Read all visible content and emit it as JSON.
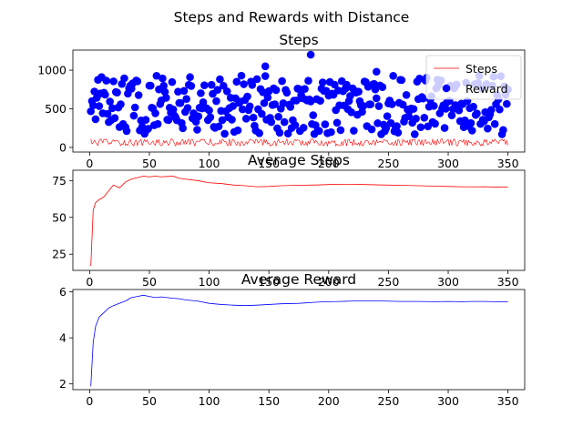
{
  "figure": {
    "suptitle": "Steps and Rewards with Distance"
  },
  "chart_data": [
    {
      "type": "line+scatter",
      "title": "Steps",
      "xlim": [
        -14,
        364
      ],
      "ylim": [
        -60,
        1260
      ],
      "xticks": [
        0,
        50,
        100,
        150,
        200,
        250,
        300,
        350
      ],
      "yticks": [
        0,
        500,
        1000
      ],
      "legend": {
        "placement": "top-right",
        "entries": [
          "Steps",
          "Reward"
        ]
      },
      "series": [
        {
          "name": "Steps",
          "kind": "line",
          "color": "#ff0000",
          "x_range": [
            1,
            350
          ],
          "description": "per-episode steps, fluctuating roughly 20-110"
        },
        {
          "name": "Reward",
          "kind": "scatter",
          "color": "#0000ff",
          "x_range": [
            1,
            350
          ],
          "description": "per-episode reward, scattered roughly 150-1200",
          "max_point": [
            185,
            1200
          ],
          "notable_points": [
            [
              147,
              1050
            ],
            [
              240,
              980
            ]
          ]
        }
      ]
    },
    {
      "type": "line",
      "title": "Average Steps",
      "xlim": [
        -14,
        364
      ],
      "ylim": [
        14,
        82
      ],
      "xticks": [
        0,
        50,
        100,
        150,
        200,
        250,
        300,
        350
      ],
      "yticks": [
        25,
        50,
        75
      ],
      "series": [
        {
          "color": "#ff0000",
          "x": [
            1,
            3,
            5,
            8,
            12,
            16,
            20,
            25,
            30,
            35,
            40,
            45,
            50,
            55,
            60,
            65,
            70,
            75,
            80,
            90,
            100,
            110,
            120,
            130,
            140,
            150,
            160,
            175,
            190,
            200,
            210,
            220,
            230,
            245,
            260,
            275,
            290,
            300,
            310,
            320,
            330,
            340,
            350
          ],
          "y": [
            17,
            55,
            60,
            62,
            64,
            68,
            72,
            70,
            74,
            76,
            77,
            78,
            77.5,
            78,
            77.5,
            77.8,
            78,
            76.5,
            76,
            75,
            73.5,
            73,
            72,
            71.5,
            70.8,
            71,
            71.5,
            71.8,
            72,
            72.3,
            72.5,
            72.5,
            72.3,
            72,
            71.8,
            71.5,
            71.2,
            71,
            70.8,
            70.7,
            70.8,
            70.6,
            70.5
          ]
        }
      ]
    },
    {
      "type": "line",
      "title": "Average Reward",
      "xlim": [
        -14,
        364
      ],
      "ylim": [
        1.75,
        6.1
      ],
      "xticks": [
        0,
        50,
        100,
        150,
        200,
        250,
        300,
        350
      ],
      "yticks": [
        2,
        4,
        6
      ],
      "series": [
        {
          "color": "#0000ff",
          "x": [
            1,
            3,
            5,
            8,
            12,
            16,
            20,
            25,
            30,
            35,
            40,
            45,
            50,
            55,
            60,
            65,
            70,
            75,
            80,
            90,
            100,
            110,
            120,
            130,
            140,
            150,
            160,
            175,
            190,
            200,
            210,
            220,
            230,
            245,
            260,
            275,
            290,
            300,
            310,
            320,
            330,
            340,
            350
          ],
          "y": [
            1.9,
            3.8,
            4.5,
            4.9,
            5.1,
            5.3,
            5.4,
            5.5,
            5.6,
            5.75,
            5.8,
            5.85,
            5.8,
            5.75,
            5.78,
            5.75,
            5.72,
            5.7,
            5.65,
            5.6,
            5.5,
            5.45,
            5.42,
            5.4,
            5.42,
            5.45,
            5.48,
            5.5,
            5.55,
            5.57,
            5.58,
            5.6,
            5.6,
            5.6,
            5.58,
            5.58,
            5.57,
            5.58,
            5.57,
            5.58,
            5.58,
            5.57,
            5.56
          ]
        }
      ]
    }
  ]
}
